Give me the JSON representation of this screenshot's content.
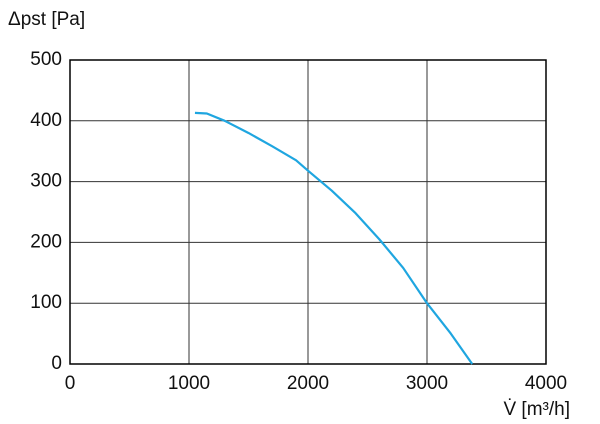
{
  "chart_data": {
    "type": "line",
    "ylabel": "Δpst [Pa]",
    "xlabel": "V̇ [m³/h]",
    "x": [
      1050,
      1150,
      1300,
      1500,
      1700,
      1900,
      2000,
      2200,
      2400,
      2600,
      2800,
      3000,
      3200,
      3380
    ],
    "series": [
      {
        "color": "#1fa6e0",
        "values": [
          413,
          412,
          400,
          380,
          358,
          335,
          318,
          285,
          248,
          205,
          158,
          100,
          50,
          0
        ]
      }
    ],
    "xlim": [
      0,
      4000
    ],
    "xticks": [
      0,
      1000,
      2000,
      3000,
      4000
    ],
    "ylim": [
      0,
      500
    ],
    "yticks": [
      0,
      100,
      200,
      300,
      400,
      500
    ],
    "grid": true
  }
}
